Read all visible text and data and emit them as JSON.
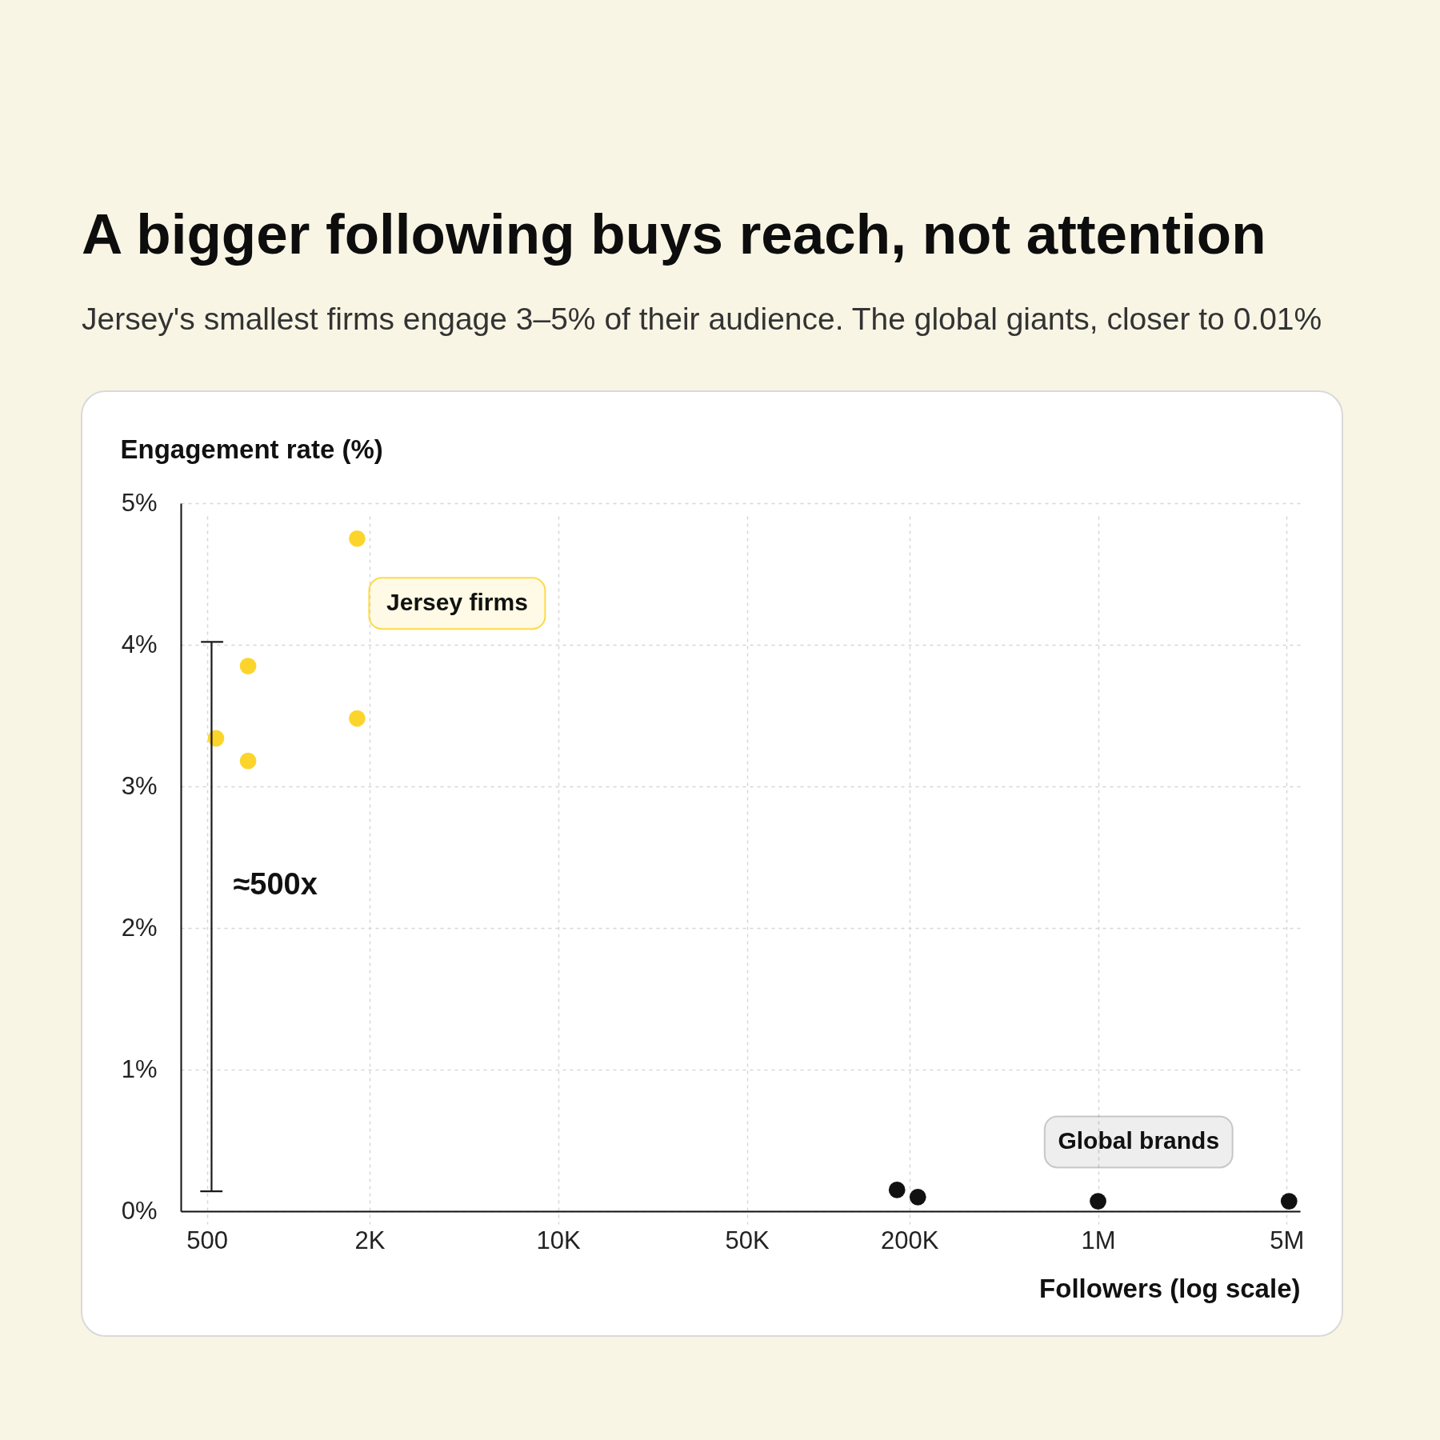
{
  "chart_data": {
    "type": "scatter",
    "title": "A bigger following buys reach, not attention",
    "subtitle": "Jersey's smallest firms engage 3–5% of their audience. The global giants, closer to 0.01%",
    "xlabel": "Followers (log scale)",
    "ylabel": "Engagement rate (%)",
    "log": "x",
    "xlim": [
      400,
      5600000
    ],
    "xticks": [
      500,
      {
        "value": 2000,
        "label": "2K"
      },
      {
        "value": 10000,
        "label": "10K"
      },
      {
        "value": 50000,
        "label": "50K"
      },
      {
        "value": 200000,
        "label": "200K"
      },
      {
        "value": 1000000,
        "label": "1M"
      },
      {
        "value": 5000000,
        "label": "5M"
      }
    ],
    "ylim": [
      0,
      5
    ],
    "yticks": [
      {
        "value": 0,
        "label": "0%"
      },
      {
        "value": 1,
        "label": "1%"
      },
      {
        "value": 2,
        "label": "2%"
      },
      {
        "value": 3,
        "label": "3%"
      },
      {
        "value": 4,
        "label": "4%"
      },
      {
        "value": 5,
        "label": "5%"
      }
    ],
    "grid": true,
    "marker": "circle",
    "series": [
      {
        "name": "Jersey firms",
        "color": "#fbd52b",
        "x": [
          540,
          710,
          710,
          1800,
          1800
        ],
        "values": [
          3.34,
          3.85,
          3.18,
          4.75,
          3.48
        ]
      },
      {
        "name": "Global brands",
        "color": "#111111",
        "x": [
          180000,
          215000,
          1000000,
          5100000
        ],
        "values": [
          0.15,
          0.1,
          0.07,
          0.07
        ]
      },
      {
        "type": "line",
        "color": "#1a1a1a",
        "marker": "none",
        "x": [
          475,
          571,
          520,
          520,
          475,
          571
        ],
        "values": [
          4.02,
          4.02,
          4.02,
          0.14,
          0.14,
          0.14
        ]
      }
    ],
    "annotations": [
      {
        "text": "≈500x",
        "x": 520,
        "y": 2.3
      }
    ]
  }
}
